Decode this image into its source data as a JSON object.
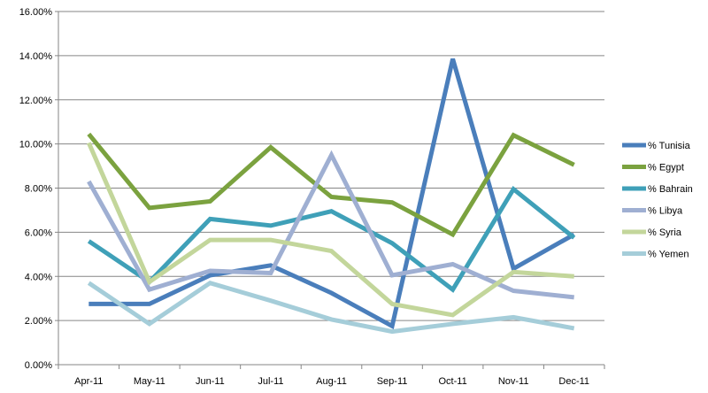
{
  "chart_data": {
    "type": "line",
    "title": "",
    "xlabel": "",
    "ylabel": "",
    "categories": [
      "Apr-11",
      "May-11",
      "Jun-11",
      "Jul-11",
      "Aug-11",
      "Sep-11",
      "Oct-11",
      "Nov-11",
      "Dec-11"
    ],
    "ylim": [
      0,
      0.16
    ],
    "yticks": [
      0,
      0.02,
      0.04,
      0.06,
      0.08,
      0.1,
      0.12,
      0.14,
      0.16
    ],
    "ytick_labels": [
      "0.00%",
      "2.00%",
      "4.00%",
      "6.00%",
      "8.00%",
      "10.00%",
      "12.00%",
      "14.00%",
      "16.00%"
    ],
    "grid": true,
    "legend_position": "right",
    "series": [
      {
        "name": "% Tunisia",
        "color": "#4a7ebb",
        "values": [
          0.0275,
          0.0275,
          0.0405,
          0.045,
          0.0325,
          0.0175,
          0.1385,
          0.0435,
          0.059
        ]
      },
      {
        "name": "% Egypt",
        "color": "#7ba23f",
        "values": [
          0.1045,
          0.071,
          0.074,
          0.0985,
          0.076,
          0.0735,
          0.059,
          0.104,
          0.0905
        ]
      },
      {
        "name": "% Bahrain",
        "color": "#3fa0b8",
        "values": [
          0.056,
          0.0375,
          0.066,
          0.063,
          0.0695,
          0.055,
          0.034,
          0.0795,
          0.0575
        ]
      },
      {
        "name": "% Libya",
        "color": "#9fafd2",
        "values": [
          0.083,
          0.034,
          0.0425,
          0.0415,
          0.095,
          0.0405,
          0.0455,
          0.0335,
          0.0305
        ]
      },
      {
        "name": "% Syria",
        "color": "#c3d69b",
        "values": [
          0.1005,
          0.0375,
          0.0565,
          0.0565,
          0.0515,
          0.0275,
          0.0225,
          0.042,
          0.04
        ]
      },
      {
        "name": "% Yemen",
        "color": "#a5cdd9",
        "values": [
          0.037,
          0.0185,
          0.037,
          0.029,
          0.0205,
          0.015,
          0.0185,
          0.0215,
          0.0165
        ]
      }
    ]
  }
}
